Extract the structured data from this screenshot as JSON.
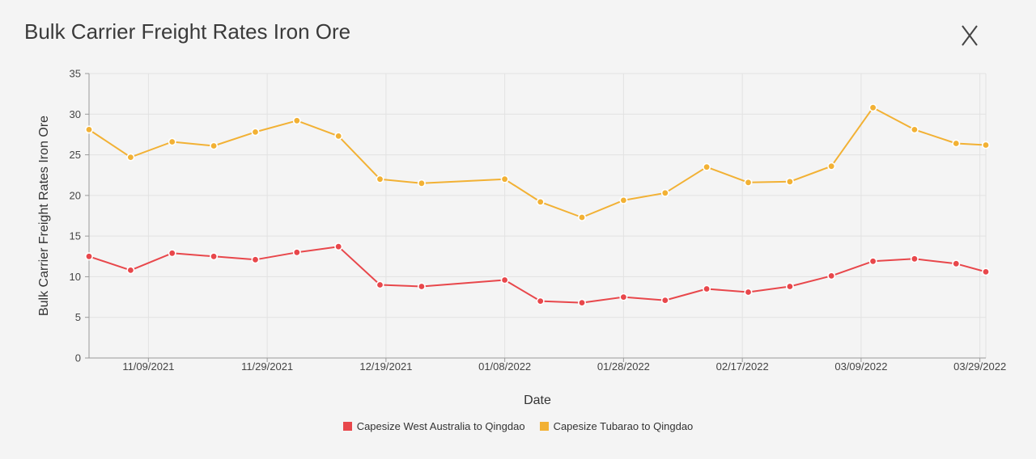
{
  "title": "Bulk Carrier Freight Rates Iron Ore",
  "close_icon": "close-icon",
  "colors": {
    "background": "#f4f4f4",
    "grid": "#e2e2e2",
    "axis": "#9a9a9a",
    "series_1": "#e8474b",
    "series_2": "#f2b134"
  },
  "chart_data": {
    "type": "line",
    "title": "Bulk Carrier Freight Rates Iron Ore",
    "xlabel": "Date",
    "ylabel": "Bulk Carrier Freight Rates Iron Ore",
    "ylim": [
      0,
      35
    ],
    "yticks": [
      "0",
      "5",
      "10",
      "15",
      "20",
      "25",
      "30",
      "35"
    ],
    "xlim": [
      "2021-10-30",
      "2022-03-30"
    ],
    "xticks": [
      {
        "date": "2021-11-09",
        "label": "11/09/2021"
      },
      {
        "date": "2021-11-29",
        "label": "11/29/2021"
      },
      {
        "date": "2021-12-19",
        "label": "12/19/2021"
      },
      {
        "date": "2022-01-08",
        "label": "01/08/2022"
      },
      {
        "date": "2022-01-28",
        "label": "01/28/2022"
      },
      {
        "date": "2022-02-17",
        "label": "02/17/2022"
      },
      {
        "date": "2022-03-09",
        "label": "03/09/2022"
      },
      {
        "date": "2022-03-29",
        "label": "03/29/2022"
      }
    ],
    "x": [
      "2021-10-30",
      "2021-11-06",
      "2021-11-13",
      "2021-11-20",
      "2021-11-27",
      "2021-12-04",
      "2021-12-11",
      "2021-12-18",
      "2021-12-25",
      "2022-01-08",
      "2022-01-14",
      "2022-01-21",
      "2022-01-28",
      "2022-02-04",
      "2022-02-11",
      "2022-02-18",
      "2022-02-25",
      "2022-03-04",
      "2022-03-11",
      "2022-03-18",
      "2022-03-25",
      "2022-03-30"
    ],
    "series": [
      {
        "name": "Capesize West Australia to Qingdao",
        "color": "#e8474b",
        "values": [
          12.5,
          10.8,
          12.9,
          12.5,
          12.1,
          13.0,
          13.7,
          9.0,
          8.8,
          9.6,
          7.0,
          6.8,
          7.5,
          7.1,
          8.5,
          8.1,
          8.8,
          10.1,
          11.9,
          12.2,
          11.6,
          10.6
        ]
      },
      {
        "name": "Capesize Tubarao to Qingdao",
        "color": "#f2b134",
        "values": [
          28.1,
          24.7,
          26.6,
          26.1,
          27.8,
          29.2,
          27.3,
          22.0,
          21.5,
          22.0,
          19.2,
          17.3,
          19.4,
          20.3,
          23.5,
          21.6,
          21.7,
          23.6,
          30.8,
          28.1,
          26.4,
          26.2
        ]
      }
    ],
    "legend_position": "bottom-center",
    "grid": true
  }
}
